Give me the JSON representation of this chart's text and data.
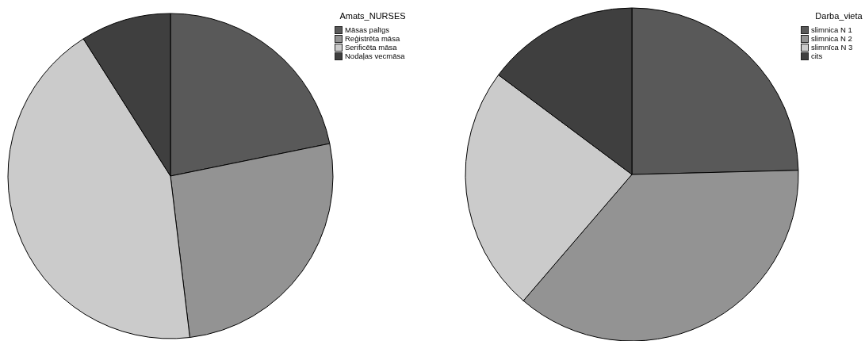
{
  "chart_data": [
    {
      "type": "pie",
      "legend_title": "Amats_NURSES",
      "categories": [
        "Māsas palīgs",
        "Reģistrēta māsa",
        "Serificēta māsa",
        "Nodaļas vecmāsa"
      ],
      "values": [
        21.8,
        26.3,
        42.9,
        9.0
      ],
      "colors": [
        "#595959",
        "#939393",
        "#cbcbcb",
        "#3f3f3f"
      ],
      "legend": "top right"
    },
    {
      "type": "pie",
      "legend_title": "Darba_vieta",
      "categories": [
        "slimnica N 1",
        "slimnica N 2",
        "slimnīca N 3",
        "cits"
      ],
      "values": [
        24.6,
        36.7,
        23.9,
        14.8
      ],
      "colors": [
        "#595959",
        "#939393",
        "#cbcbcb",
        "#3f3f3f"
      ],
      "legend": "top right"
    }
  ]
}
